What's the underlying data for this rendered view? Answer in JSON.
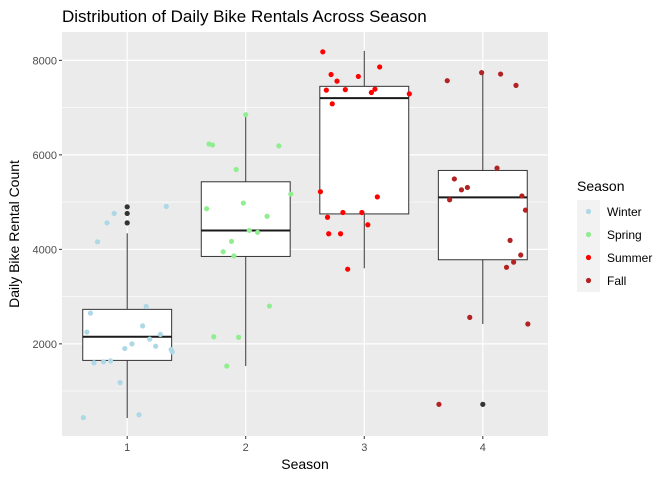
{
  "chart_data": {
    "type": "box",
    "title": "Distribution of Daily Bike Rentals Across Season",
    "xlabel": "Season",
    "ylabel": "Daily Bike Rental Count",
    "categories": [
      "1",
      "2",
      "3",
      "4"
    ],
    "ylim": [
      50,
      8600
    ],
    "yticks": [
      2000,
      4000,
      6000,
      8000
    ],
    "grid": true,
    "legend": {
      "title": "Season",
      "position": "right",
      "entries": [
        {
          "label": "Winter",
          "color": "#add8e6"
        },
        {
          "label": "Spring",
          "color": "#90ee90"
        },
        {
          "label": "Summer",
          "color": "#ff0000"
        },
        {
          "label": "Fall",
          "color": "#b22222"
        }
      ]
    },
    "boxes": [
      {
        "category": "1",
        "whisker_low": 430,
        "q1": 1650,
        "median": 2150,
        "q3": 2730,
        "whisker_high": 4340,
        "outliers": [
          4560,
          4760,
          4900
        ]
      },
      {
        "category": "2",
        "whisker_low": 1530,
        "q1": 3850,
        "median": 4400,
        "q3": 5430,
        "whisker_high": 6850,
        "outliers": []
      },
      {
        "category": "3",
        "whisker_low": 3600,
        "q1": 4750,
        "median": 7200,
        "q3": 7450,
        "whisker_high": 8200,
        "outliers": []
      },
      {
        "category": "4",
        "whisker_low": 2420,
        "q1": 3780,
        "median": 5100,
        "q3": 5670,
        "whisker_high": 7740,
        "outliers": [
          720
        ]
      }
    ],
    "series": [
      {
        "name": "Winter",
        "color": "#add8e6",
        "points": [
          [
            0.63,
            440
          ],
          [
            0.66,
            2250
          ],
          [
            0.69,
            2650
          ],
          [
            0.72,
            1600
          ],
          [
            0.75,
            4160
          ],
          [
            0.8,
            1620
          ],
          [
            0.83,
            4560
          ],
          [
            0.86,
            1640
          ],
          [
            0.89,
            4760
          ],
          [
            0.94,
            1180
          ],
          [
            0.98,
            1900
          ],
          [
            1.04,
            2000
          ],
          [
            1.1,
            500
          ],
          [
            1.13,
            2380
          ],
          [
            1.16,
            2790
          ],
          [
            1.19,
            2100
          ],
          [
            1.24,
            1950
          ],
          [
            1.28,
            2200
          ],
          [
            1.33,
            4910
          ],
          [
            1.37,
            1880
          ],
          [
            1.38,
            1830
          ]
        ]
      },
      {
        "name": "Spring",
        "color": "#90ee90",
        "points": [
          [
            1.67,
            4860
          ],
          [
            1.69,
            6230
          ],
          [
            1.72,
            6210
          ],
          [
            1.73,
            2150
          ],
          [
            1.81,
            3950
          ],
          [
            1.84,
            1530
          ],
          [
            1.88,
            4170
          ],
          [
            1.9,
            3860
          ],
          [
            1.92,
            5690
          ],
          [
            1.94,
            2140
          ],
          [
            1.98,
            4980
          ],
          [
            2.0,
            6850
          ],
          [
            2.1,
            4360
          ],
          [
            2.18,
            4700
          ],
          [
            2.2,
            2800
          ],
          [
            2.28,
            6190
          ],
          [
            2.38,
            5170
          ],
          [
            2.03,
            4400
          ]
        ]
      },
      {
        "name": "Summer",
        "color": "#ff0000",
        "points": [
          [
            2.63,
            5220
          ],
          [
            2.65,
            8180
          ],
          [
            2.68,
            7370
          ],
          [
            2.69,
            4680
          ],
          [
            2.7,
            4330
          ],
          [
            2.72,
            7700
          ],
          [
            2.73,
            7080
          ],
          [
            2.77,
            7560
          ],
          [
            2.8,
            4330
          ],
          [
            2.82,
            4780
          ],
          [
            2.84,
            7380
          ],
          [
            2.86,
            3580
          ],
          [
            2.95,
            7660
          ],
          [
            2.98,
            4780
          ],
          [
            3.03,
            4520
          ],
          [
            3.06,
            7320
          ],
          [
            3.09,
            7390
          ],
          [
            3.11,
            5110
          ],
          [
            3.13,
            7860
          ],
          [
            3.38,
            7290
          ]
        ]
      },
      {
        "name": "Fall",
        "color": "#b22222",
        "points": [
          [
            3.63,
            720
          ],
          [
            3.7,
            7570
          ],
          [
            3.72,
            5050
          ],
          [
            3.76,
            5490
          ],
          [
            3.82,
            5260
          ],
          [
            3.87,
            5310
          ],
          [
            3.89,
            2560
          ],
          [
            3.99,
            7740
          ],
          [
            4.12,
            5720
          ],
          [
            4.15,
            7710
          ],
          [
            4.2,
            3620
          ],
          [
            4.23,
            4190
          ],
          [
            4.26,
            3730
          ],
          [
            4.28,
            7470
          ],
          [
            4.32,
            3880
          ],
          [
            4.33,
            5130
          ],
          [
            4.36,
            4830
          ],
          [
            4.38,
            2420
          ]
        ]
      }
    ]
  }
}
